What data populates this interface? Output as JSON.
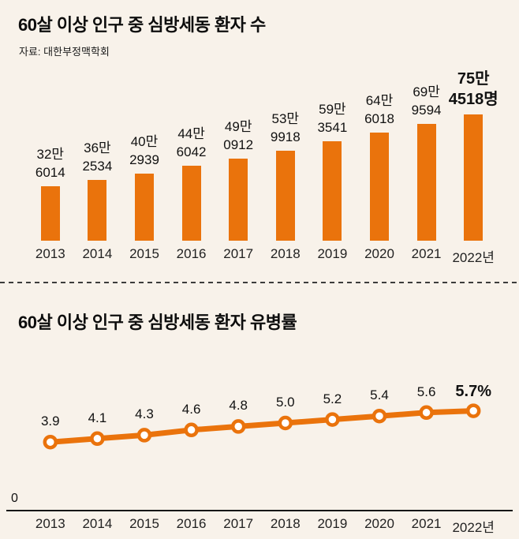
{
  "page": {
    "background": "#f8f2ea"
  },
  "chart_data": [
    {
      "type": "bar",
      "title": "60살 이상 인구 중 심방세동 환자 수",
      "source": "자료: 대한부정맥학회",
      "categories": [
        "2013",
        "2014",
        "2015",
        "2016",
        "2017",
        "2018",
        "2019",
        "2020",
        "2021",
        "2022년"
      ],
      "values": [
        326014,
        362534,
        402939,
        446042,
        490912,
        539918,
        593541,
        646018,
        699594,
        754518
      ],
      "bar_labels": [
        [
          "32만",
          "6014"
        ],
        [
          "36만",
          "2534"
        ],
        [
          "40만",
          "2939"
        ],
        [
          "44만",
          "6042"
        ],
        [
          "49만",
          "0912"
        ],
        [
          "53만",
          "9918"
        ],
        [
          "59만",
          "3541"
        ],
        [
          "64만",
          "6018"
        ],
        [
          "69만",
          "9594"
        ],
        [
          "75만",
          "4518명"
        ]
      ],
      "bar_color": "#ea730c",
      "ylim": [
        0,
        800000
      ],
      "grid": false,
      "legend": false
    },
    {
      "type": "line",
      "title": "60살 이상 인구 중 심방세동 환자 유병률",
      "categories": [
        "2013",
        "2014",
        "2015",
        "2016",
        "2017",
        "2018",
        "2019",
        "2020",
        "2021",
        "2022년"
      ],
      "values": [
        3.9,
        4.1,
        4.3,
        4.6,
        4.8,
        5.0,
        5.2,
        5.4,
        5.6,
        5.7
      ],
      "point_labels": [
        "3.9",
        "4.1",
        "4.3",
        "4.6",
        "4.8",
        "5.0",
        "5.2",
        "5.4",
        "5.6",
        "5.7%"
      ],
      "line_color": "#ea730c",
      "marker": "open-circle",
      "y_axis_zero_label": "0",
      "ylim": [
        0,
        6.5
      ],
      "grid": false,
      "legend": false
    }
  ]
}
